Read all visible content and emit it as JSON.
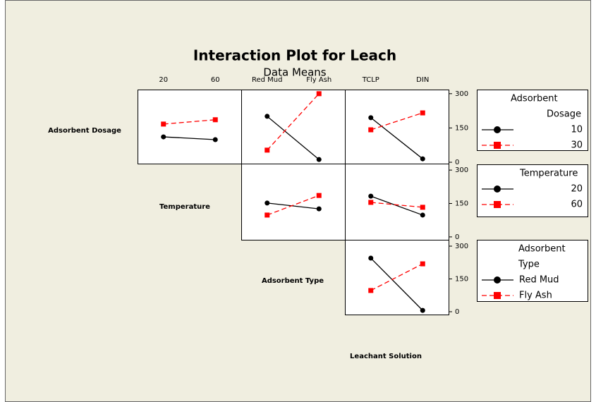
{
  "header": {
    "title": "Interaction Plot for Leach",
    "subtitle": "Data Means"
  },
  "row_labels": [
    "Adsorbent Dosage",
    "Temperature",
    "Adsorbent Type",
    "Leachant Solution"
  ],
  "legends": [
    {
      "title": [
        "Adsorbent",
        "Dosage"
      ]
    },
    {
      "title": [
        "Temperature"
      ]
    },
    {
      "title": [
        "Adsorbent",
        "Type"
      ]
    }
  ],
  "chart_data": [
    {
      "type": "line",
      "categories": [
        "20",
        "60"
      ],
      "ylim": [
        -6,
        318
      ],
      "series": [
        {
          "name": "10",
          "color": "#000000",
          "marker": "circle",
          "line_style": "solid",
          "values": [
            111,
            99
          ]
        },
        {
          "name": "30",
          "color": "#ff0000",
          "marker": "square",
          "line_style": "dashed",
          "values": [
            167,
            186
          ]
        }
      ]
    },
    {
      "type": "line",
      "categories": [
        "Red Mud",
        "Fly Ash"
      ],
      "ylim": [
        -6,
        318
      ],
      "series": [
        {
          "name": "10",
          "color": "#000000",
          "marker": "circle",
          "line_style": "solid",
          "values": [
            201,
            12
          ]
        },
        {
          "name": "30",
          "color": "#ff0000",
          "marker": "square",
          "line_style": "dashed",
          "values": [
            53,
            300
          ]
        }
      ]
    },
    {
      "type": "line",
      "categories": [
        "TCLP",
        "DIN"
      ],
      "ylim": [
        -6,
        318
      ],
      "yticks": [
        0,
        150,
        300
      ],
      "series": [
        {
          "name": "10",
          "color": "#000000",
          "marker": "circle",
          "line_style": "solid",
          "values": [
            195,
            15
          ]
        },
        {
          "name": "30",
          "color": "#ff0000",
          "marker": "square",
          "line_style": "dashed",
          "values": [
            142,
            216
          ]
        }
      ]
    },
    {
      "type": "line",
      "categories": [
        "Red Mud",
        "Fly Ash"
      ],
      "ylim": [
        -13,
        329
      ],
      "series": [
        {
          "name": "20",
          "color": "#000000",
          "marker": "circle",
          "line_style": "solid",
          "values": [
            152,
            126
          ]
        },
        {
          "name": "60",
          "color": "#ff0000",
          "marker": "square",
          "line_style": "dashed",
          "values": [
            98,
            186
          ]
        }
      ]
    },
    {
      "type": "line",
      "categories": [
        "TCLP",
        "DIN"
      ],
      "ylim": [
        -13,
        329
      ],
      "yticks": [
        0,
        150,
        300
      ],
      "series": [
        {
          "name": "20",
          "color": "#000000",
          "marker": "circle",
          "line_style": "solid",
          "values": [
            183,
            98
          ]
        },
        {
          "name": "60",
          "color": "#ff0000",
          "marker": "square",
          "line_style": "dashed",
          "values": [
            155,
            133
          ]
        }
      ]
    },
    {
      "type": "line",
      "categories": [
        "TCLP",
        "DIN"
      ],
      "ylim": [
        -13,
        329
      ],
      "yticks": [
        0,
        150,
        300
      ],
      "series": [
        {
          "name": "Red Mud",
          "color": "#000000",
          "marker": "circle",
          "line_style": "solid",
          "values": [
            245,
            6
          ]
        },
        {
          "name": "Fly Ash",
          "color": "#ff0000",
          "marker": "square",
          "line_style": "dashed",
          "values": [
            97,
            219
          ]
        }
      ]
    }
  ]
}
